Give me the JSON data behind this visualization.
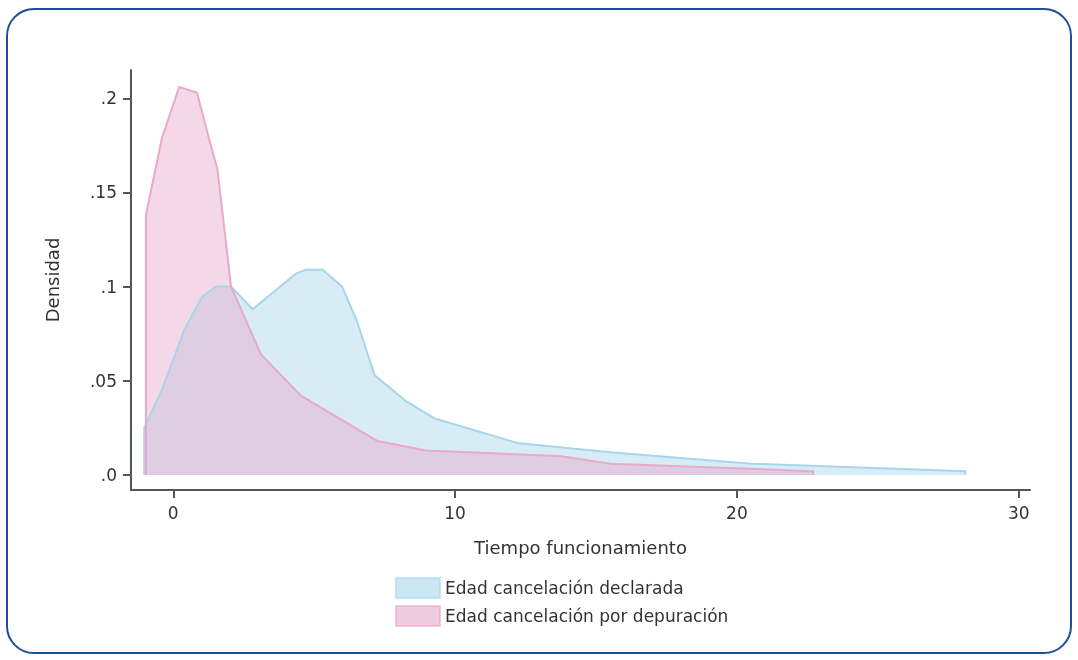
{
  "chart_data": {
    "type": "area",
    "xlabel": "Tiempo funcionamiento",
    "ylabel": "Densidad",
    "xlim": [
      -1.5,
      30.4
    ],
    "xticks": [
      0,
      10,
      20,
      30
    ],
    "ylim": [
      -0.008,
      0.215
    ],
    "yticks": [
      {
        "value": 0,
        "label": ".0"
      },
      {
        "value": 0.05,
        "label": ".05"
      },
      {
        "value": 0.1,
        "label": ".1"
      },
      {
        "value": 0.15,
        "label": ".15"
      },
      {
        "value": 0.2,
        "label": ".2"
      }
    ],
    "grid": false,
    "legend": "bottom",
    "marker": "none",
    "line_style": "solid",
    "series": [
      {
        "name": "Edad cancelación declarada",
        "color": "#a9d5ec",
        "x": [
          -1.03,
          -0.38,
          0.39,
          1.04,
          1.52,
          2.05,
          2.82,
          4.36,
          4.71,
          5.3,
          5.99,
          6.51,
          7.14,
          8.27,
          9.27,
          12.2,
          15.5,
          20.5,
          28.1
        ],
        "values": [
          0.025,
          0.046,
          0.077,
          0.095,
          0.1,
          0.1,
          0.088,
          0.107,
          0.109,
          0.109,
          0.1,
          0.082,
          0.053,
          0.039,
          0.03,
          0.017,
          0.012,
          0.006,
          0.002
        ]
      },
      {
        "name": "Edad cancelación por depuración",
        "color": "#e8a9ca",
        "x": [
          -0.97,
          -0.4,
          0.21,
          0.84,
          1.28,
          1.57,
          2.05,
          3.11,
          4.54,
          7.25,
          8.97,
          13.7,
          15.5,
          22.7
        ],
        "values": [
          0.138,
          0.179,
          0.206,
          0.203,
          0.178,
          0.162,
          0.1,
          0.064,
          0.042,
          0.018,
          0.013,
          0.01,
          0.006,
          0.002
        ]
      }
    ]
  }
}
